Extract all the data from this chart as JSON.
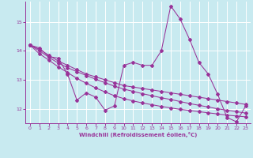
{
  "xlabel": "Windchill (Refroidissement éolien,°C)",
  "bg_color": "#c8eaf0",
  "grid_color": "#ffffff",
  "line_color": "#993399",
  "xlim": [
    -0.5,
    23.5
  ],
  "ylim": [
    11.5,
    15.7
  ],
  "yticks": [
    12,
    13,
    14,
    15
  ],
  "xticks": [
    0,
    1,
    2,
    3,
    4,
    5,
    6,
    7,
    8,
    9,
    10,
    11,
    12,
    13,
    14,
    15,
    16,
    17,
    18,
    19,
    20,
    21,
    22,
    23
  ],
  "series1": [
    14.2,
    14.1,
    13.8,
    13.75,
    13.2,
    12.3,
    12.55,
    12.4,
    11.95,
    12.1,
    13.5,
    13.6,
    13.5,
    13.5,
    14.0,
    15.55,
    15.1,
    14.4,
    13.6,
    13.2,
    12.5,
    11.7,
    11.55,
    12.1
  ],
  "series2": [
    14.2,
    14.05,
    13.85,
    13.65,
    13.5,
    13.35,
    13.2,
    13.1,
    13.0,
    12.9,
    12.8,
    12.75,
    12.7,
    12.65,
    12.6,
    12.55,
    12.5,
    12.45,
    12.4,
    12.35,
    12.3,
    12.25,
    12.2,
    12.15
  ],
  "series3": [
    14.2,
    14.0,
    13.78,
    13.58,
    13.42,
    13.28,
    13.15,
    13.02,
    12.9,
    12.78,
    12.68,
    12.6,
    12.52,
    12.45,
    12.38,
    12.32,
    12.25,
    12.18,
    12.12,
    12.06,
    12.0,
    11.95,
    11.9,
    11.85
  ],
  "series4": [
    14.2,
    13.9,
    13.68,
    13.45,
    13.25,
    13.05,
    12.88,
    12.72,
    12.58,
    12.45,
    12.35,
    12.27,
    12.2,
    12.14,
    12.08,
    12.03,
    11.98,
    11.94,
    11.9,
    11.86,
    11.82,
    11.78,
    11.75,
    11.72
  ]
}
